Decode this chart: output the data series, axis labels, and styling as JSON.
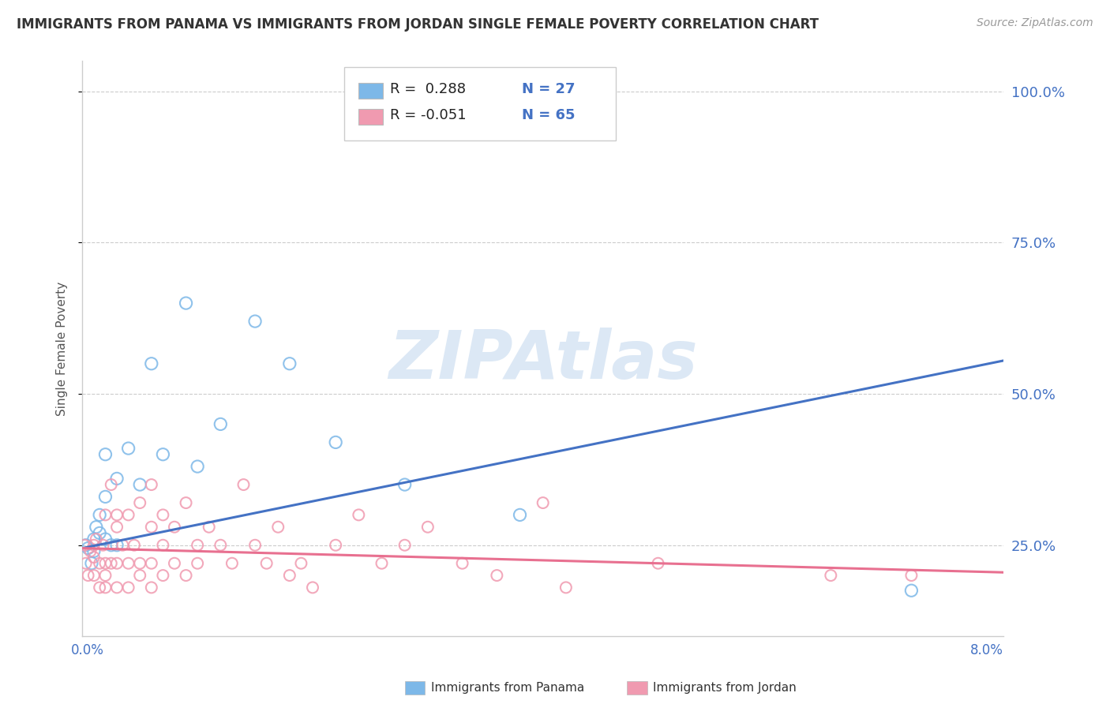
{
  "title": "IMMIGRANTS FROM PANAMA VS IMMIGRANTS FROM JORDAN SINGLE FEMALE POVERTY CORRELATION CHART",
  "source": "Source: ZipAtlas.com",
  "ylabel": "Single Female Poverty",
  "yticks": [
    0.25,
    0.5,
    0.75,
    1.0
  ],
  "ytick_labels": [
    "25.0%",
    "50.0%",
    "75.0%",
    "100.0%"
  ],
  "bg_color": "#ffffff",
  "scatter_panama_color": "#7db8e8",
  "scatter_jordan_color": "#f09ab0",
  "trend_panama_color": "#4472c4",
  "trend_jordan_color": "#e87090",
  "watermark_text": "ZIPAtlas",
  "watermark_color": "#dce8f5",
  "xlim": [
    0.0,
    0.08
  ],
  "ylim": [
    0.1,
    1.05
  ],
  "panama_x": [
    0.0003,
    0.0005,
    0.0008,
    0.001,
    0.001,
    0.0012,
    0.0015,
    0.0015,
    0.002,
    0.002,
    0.002,
    0.0025,
    0.003,
    0.003,
    0.004,
    0.005,
    0.006,
    0.007,
    0.009,
    0.01,
    0.012,
    0.015,
    0.018,
    0.022,
    0.028,
    0.038,
    0.072
  ],
  "panama_y": [
    0.25,
    0.245,
    0.22,
    0.26,
    0.24,
    0.28,
    0.27,
    0.3,
    0.33,
    0.26,
    0.4,
    0.25,
    0.36,
    0.25,
    0.41,
    0.35,
    0.55,
    0.4,
    0.65,
    0.38,
    0.45,
    0.62,
    0.55,
    0.42,
    0.35,
    0.3,
    0.175
  ],
  "jordan_x": [
    0.0002,
    0.0003,
    0.0005,
    0.0007,
    0.001,
    0.001,
    0.001,
    0.0012,
    0.0015,
    0.0015,
    0.0018,
    0.002,
    0.002,
    0.002,
    0.002,
    0.0025,
    0.0025,
    0.003,
    0.003,
    0.003,
    0.003,
    0.0035,
    0.004,
    0.004,
    0.004,
    0.0045,
    0.005,
    0.005,
    0.005,
    0.006,
    0.006,
    0.006,
    0.006,
    0.007,
    0.007,
    0.007,
    0.008,
    0.008,
    0.009,
    0.009,
    0.01,
    0.01,
    0.011,
    0.012,
    0.013,
    0.014,
    0.015,
    0.016,
    0.017,
    0.018,
    0.019,
    0.02,
    0.022,
    0.024,
    0.026,
    0.028,
    0.03,
    0.033,
    0.036,
    0.04,
    0.042,
    0.05,
    0.065,
    0.072
  ],
  "jordan_y": [
    0.25,
    0.22,
    0.2,
    0.24,
    0.25,
    0.23,
    0.2,
    0.26,
    0.22,
    0.18,
    0.25,
    0.3,
    0.22,
    0.2,
    0.18,
    0.35,
    0.22,
    0.3,
    0.28,
    0.22,
    0.18,
    0.25,
    0.3,
    0.22,
    0.18,
    0.25,
    0.32,
    0.22,
    0.2,
    0.35,
    0.28,
    0.22,
    0.18,
    0.3,
    0.25,
    0.2,
    0.28,
    0.22,
    0.32,
    0.2,
    0.25,
    0.22,
    0.28,
    0.25,
    0.22,
    0.35,
    0.25,
    0.22,
    0.28,
    0.2,
    0.22,
    0.18,
    0.25,
    0.3,
    0.22,
    0.25,
    0.28,
    0.22,
    0.2,
    0.32,
    0.18,
    0.22,
    0.2,
    0.2
  ],
  "trend_panama_x0": 0.0,
  "trend_panama_y0": 0.245,
  "trend_panama_x1": 0.08,
  "trend_panama_y1": 0.555,
  "trend_jordan_x0": 0.0,
  "trend_jordan_y0": 0.245,
  "trend_jordan_x1": 0.08,
  "trend_jordan_y1": 0.205
}
